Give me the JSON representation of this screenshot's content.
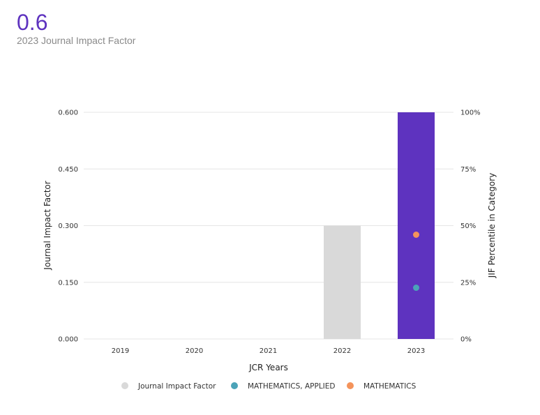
{
  "header": {
    "value": "0.6",
    "subtitle": "2023 Journal Impact Factor"
  },
  "colors": {
    "accent": "#5e33bf",
    "jif_bar": "#d9d9d9",
    "jif_bar_current": "#5e33bf",
    "mathematics_applied": "#4ba3b8",
    "mathematics": "#f4935b",
    "gridline": "#e6e6e6"
  },
  "chart_data": {
    "type": "bar",
    "categories": [
      "2019",
      "2020",
      "2021",
      "2022",
      "2023"
    ],
    "xlabel": "JCR Years",
    "ylabel": "Journal Impact Factor",
    "y2label": "JIF Percentile in Category",
    "ylim": [
      0,
      0.6
    ],
    "y2lim": [
      0,
      100
    ],
    "yticks": [
      "0.000",
      "0.150",
      "0.300",
      "0.450",
      "0.600"
    ],
    "y2ticks": [
      "0%",
      "25%",
      "50%",
      "75%",
      "100%"
    ],
    "grid": true,
    "legend_position": "bottom",
    "series": [
      {
        "name": "Journal Impact Factor",
        "kind": "bar",
        "axis": "left",
        "color": "#d9d9d9",
        "highlight_color": "#5e33bf",
        "highlight_category": "2023",
        "values": [
          null,
          null,
          null,
          0.3,
          0.6
        ]
      },
      {
        "name": "MATHEMATICS, APPLIED",
        "kind": "point",
        "axis": "right",
        "color": "#4ba3b8",
        "values": [
          null,
          null,
          null,
          null,
          22.6
        ]
      },
      {
        "name": "MATHEMATICS",
        "kind": "point",
        "axis": "right",
        "color": "#f4935b",
        "values": [
          null,
          null,
          null,
          null,
          46.0
        ]
      }
    ]
  }
}
